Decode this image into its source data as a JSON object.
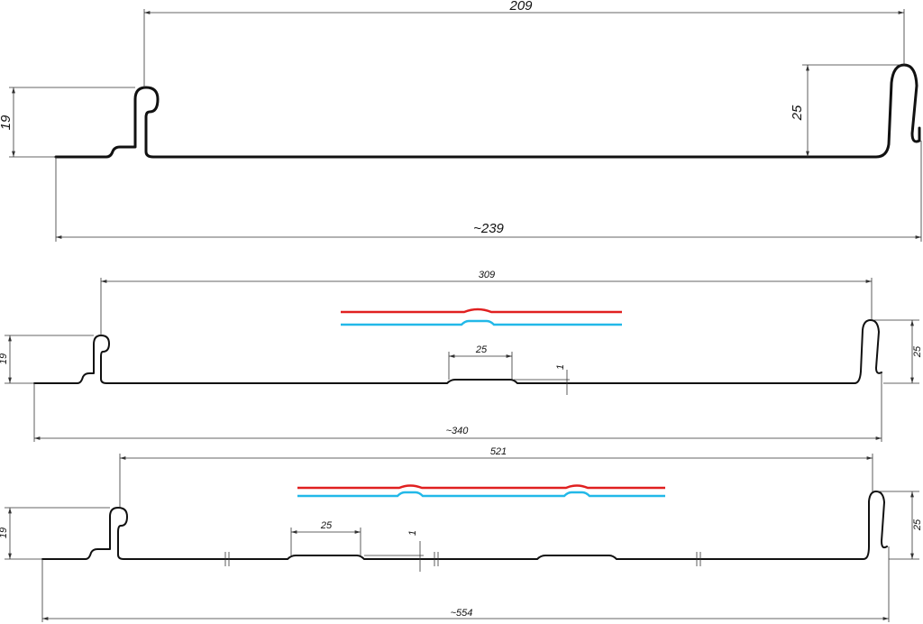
{
  "profiles": [
    {
      "width": "209",
      "height_left": "19",
      "height_right": "25",
      "total": "~239"
    },
    {
      "width": "309",
      "height_left": "19",
      "height_right": "25",
      "rib_width": "25",
      "rib_height": "1",
      "total": "~340"
    },
    {
      "width": "521",
      "height_left": "19",
      "height_right": "25",
      "rib_width": "25",
      "rib_height": "1",
      "total": "~554"
    }
  ]
}
